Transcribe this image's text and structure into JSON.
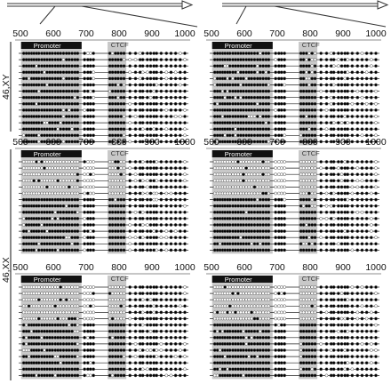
{
  "axis": {
    "ticks": [
      "500",
      "600",
      "700",
      "800",
      "900",
      "1000"
    ],
    "min": 500,
    "max": 1000
  },
  "regions": {
    "promoter_label": "Promoter",
    "ctcf_label": "CTCF"
  },
  "karyotype_labels": {
    "xy": "46,XY",
    "xx": "46,XX"
  },
  "panels": [
    {
      "group": "xy",
      "rows": 15,
      "methylated_fraction": 0.97
    },
    {
      "group": "xy",
      "rows": 15,
      "methylated_fraction": 0.97
    },
    {
      "group": "xx",
      "rows": 15,
      "methylated_fraction": 0.5
    },
    {
      "group": "xx",
      "rows": 15,
      "methylated_fraction": 0.5
    },
    {
      "group": "xx",
      "rows": 15,
      "methylated_fraction": 0.5
    },
    {
      "group": "xx",
      "rows": 15,
      "methylated_fraction": 0.5
    }
  ],
  "colors": {
    "line": "#222222",
    "promoter_bar": "#111111",
    "shade": "#c8c8c8",
    "filled": "#000000",
    "open": "#ffffff"
  }
}
